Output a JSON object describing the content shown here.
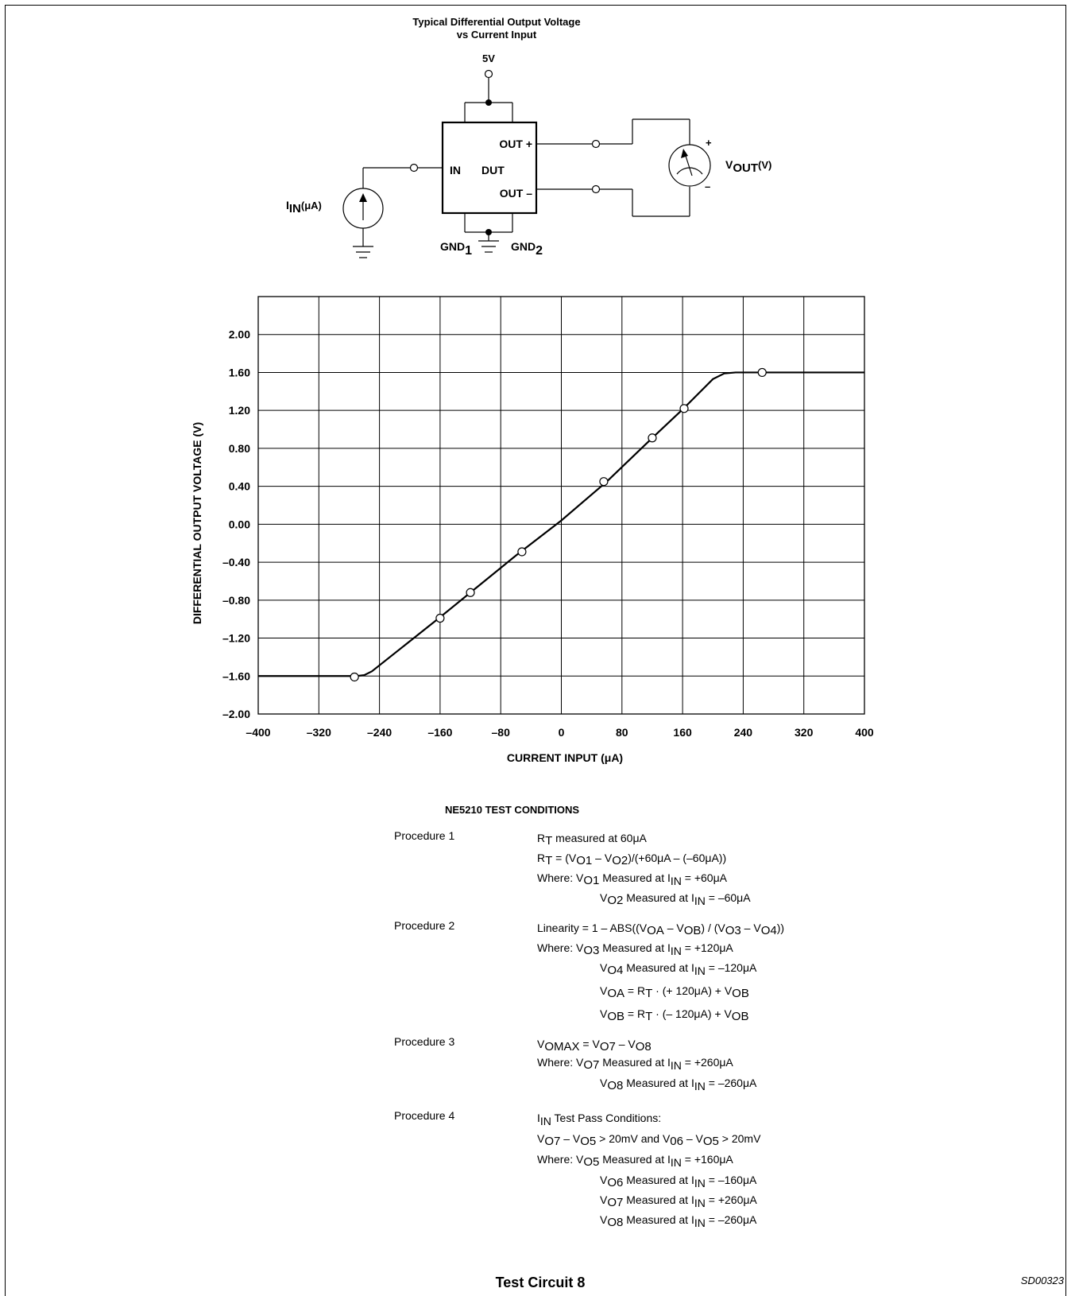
{
  "circuit": {
    "title_line1": "Typical Differential Output Voltage",
    "title_line2": "vs Current Input",
    "supply_label": "5V",
    "out_plus": "OUT +",
    "out_minus": "OUT –",
    "in_label": "IN",
    "dut_label": "DUT",
    "gnd1_base": "GND",
    "gnd1_sub": "1",
    "gnd2_base": "GND",
    "gnd2_sub": "2",
    "iin_base": "I",
    "iin_sub": "IN",
    "iin_unit": "(μA)",
    "vout_base": "V",
    "vout_sub": "OUT",
    "vout_unit": "(V)",
    "meter_plus": "+",
    "meter_minus": "–"
  },
  "chart_data": {
    "type": "line",
    "xlabel": "CURRENT INPUT (μA)",
    "ylabel": "DIFFERENTIAL OUTPUT VOLTAGE (V)",
    "xlim": [
      -400,
      400
    ],
    "ylim": [
      -2.0,
      2.4
    ],
    "grid": true,
    "x_ticks": [
      -400,
      -320,
      -240,
      -160,
      -80,
      0,
      80,
      160,
      240,
      320,
      400
    ],
    "x_tick_labels": [
      "–400",
      "–320",
      "–240",
      "–160",
      "–80",
      "0",
      "80",
      "160",
      "240",
      "320",
      "400"
    ],
    "y_ticks": [
      -2.0,
      -1.6,
      -1.2,
      -0.8,
      -0.4,
      0.0,
      0.4,
      0.8,
      1.2,
      1.6,
      2.0
    ],
    "y_tick_labels": [
      "–2.00",
      "–1.60",
      "–1.20",
      "–0.80",
      "–0.40",
      "0.00",
      "0.40",
      "0.80",
      "1.20",
      "1.60",
      "2.00"
    ],
    "curve": {
      "x": [
        -400,
        -290,
        -270,
        -260,
        -250,
        -160,
        -120,
        -60,
        0,
        60,
        120,
        160,
        200,
        215,
        230,
        260,
        400
      ],
      "y": [
        -1.6,
        -1.6,
        -1.6,
        -1.59,
        -1.55,
        -0.98,
        -0.72,
        -0.33,
        0.04,
        0.45,
        0.91,
        1.21,
        1.53,
        1.59,
        1.6,
        1.6,
        1.6
      ]
    },
    "markers": {
      "x": [
        -273,
        -160,
        -120,
        -52,
        56,
        120,
        162,
        265
      ],
      "y": [
        -1.61,
        -0.99,
        -0.72,
        -0.29,
        0.45,
        0.91,
        1.22,
        1.6
      ]
    }
  },
  "conditions": {
    "title": "NE5210 TEST CONDITIONS",
    "procedures": [
      {
        "label": "Procedure 1",
        "lines": [
          [
            [
              "R",
              ""
            ],
            [
              "T",
              "s"
            ],
            [
              " measured at 60μA",
              ""
            ]
          ],
          [
            [
              "R",
              ""
            ],
            [
              "T",
              "s"
            ],
            [
              " = (V",
              ""
            ],
            [
              "O1",
              "s"
            ],
            [
              " – V",
              ""
            ],
            [
              "O2",
              "s"
            ],
            [
              ")/(+60μA – (–60μA))",
              ""
            ]
          ],
          [
            [
              "Where:  V",
              ""
            ],
            [
              "O1",
              "s"
            ],
            [
              " Measured at I",
              ""
            ],
            [
              "IN",
              "s2"
            ],
            [
              " = +60μA",
              ""
            ]
          ],
          [
            [
              "V",
              ""
            ],
            [
              "O2",
              "s"
            ],
            [
              " Measured at I",
              ""
            ],
            [
              "IN",
              "s2"
            ],
            [
              " = –60μA",
              ""
            ]
          ]
        ]
      },
      {
        "label": "Procedure 2",
        "lines": [
          [
            [
              "Linearity = 1 – ABS((V",
              ""
            ],
            [
              "OA",
              "s"
            ],
            [
              " – V",
              ""
            ],
            [
              "OB",
              "s"
            ],
            [
              ") / (V",
              ""
            ],
            [
              "O3",
              "s"
            ],
            [
              " – V",
              ""
            ],
            [
              "O4",
              "s"
            ],
            [
              "))",
              ""
            ]
          ],
          [
            [
              "Where:  V",
              ""
            ],
            [
              "O3",
              "s"
            ],
            [
              " Measured at I",
              ""
            ],
            [
              "IN",
              "s2"
            ],
            [
              " = +120μA",
              ""
            ]
          ],
          [
            [
              "V",
              ""
            ],
            [
              "O4",
              "s"
            ],
            [
              " Measured at I",
              ""
            ],
            [
              "IN",
              "s2"
            ],
            [
              " = –120μA",
              ""
            ]
          ],
          [
            [
              "V",
              ""
            ],
            [
              "OA",
              "s"
            ],
            [
              "  =  R",
              ""
            ],
            [
              "T",
              "s"
            ],
            [
              " · (+ 120μA)  +  V",
              ""
            ],
            [
              "OB",
              "s"
            ]
          ],
          [
            [
              "V",
              ""
            ],
            [
              "OB",
              "s"
            ],
            [
              "  =  R",
              ""
            ],
            [
              "T",
              "s"
            ],
            [
              " · (– 120μA)  +  V",
              ""
            ],
            [
              "OB",
              "s"
            ]
          ]
        ]
      },
      {
        "label": "Procedure 3",
        "lines": [
          [
            [
              "V",
              ""
            ],
            [
              "OMAX",
              "s"
            ],
            [
              " = V",
              ""
            ],
            [
              "O7",
              "s"
            ],
            [
              " – V",
              ""
            ],
            [
              "O8",
              "s"
            ]
          ],
          [
            [
              "Where:  V",
              ""
            ],
            [
              "O7",
              "s"
            ],
            [
              " Measured at I",
              ""
            ],
            [
              "IN",
              "s2"
            ],
            [
              " = +260μA",
              ""
            ]
          ],
          [
            [
              "V",
              ""
            ],
            [
              "O8",
              "s"
            ],
            [
              " Measured at I",
              ""
            ],
            [
              "IN",
              "s2"
            ],
            [
              " = –260μA",
              ""
            ]
          ]
        ]
      },
      {
        "label": "Procedure 4",
        "lines": [
          [
            [
              "I",
              ""
            ],
            [
              "IN",
              "s2"
            ],
            [
              " Test Pass Conditions:",
              ""
            ]
          ],
          [
            [
              "V",
              ""
            ],
            [
              "O7",
              "s"
            ],
            [
              " – V",
              ""
            ],
            [
              "O5",
              "s"
            ],
            [
              " > 20mV and V",
              ""
            ],
            [
              "06",
              "s"
            ],
            [
              " – V",
              ""
            ],
            [
              "O5",
              "s"
            ],
            [
              " > 20mV",
              ""
            ]
          ],
          [
            [
              "Where:  V",
              ""
            ],
            [
              "O5",
              "s"
            ],
            [
              " Measured at I",
              ""
            ],
            [
              "IN",
              "s2"
            ],
            [
              " = +160μA",
              ""
            ]
          ],
          [
            [
              "V",
              ""
            ],
            [
              "O6",
              "s"
            ],
            [
              " Measured at I",
              ""
            ],
            [
              "IN",
              "s2"
            ],
            [
              " = –160μA",
              ""
            ]
          ],
          [
            [
              "V",
              ""
            ],
            [
              "O7",
              "s"
            ],
            [
              " Measured at I",
              ""
            ],
            [
              "IN",
              "s2"
            ],
            [
              " = +260μA",
              ""
            ]
          ],
          [
            [
              "V",
              ""
            ],
            [
              "O8",
              "s"
            ],
            [
              " Measured at I",
              ""
            ],
            [
              "IN",
              "s2"
            ],
            [
              " = –260μA",
              ""
            ]
          ]
        ]
      }
    ]
  },
  "footer": {
    "title": "Test Circuit 8",
    "figure_id": "SD00323"
  }
}
